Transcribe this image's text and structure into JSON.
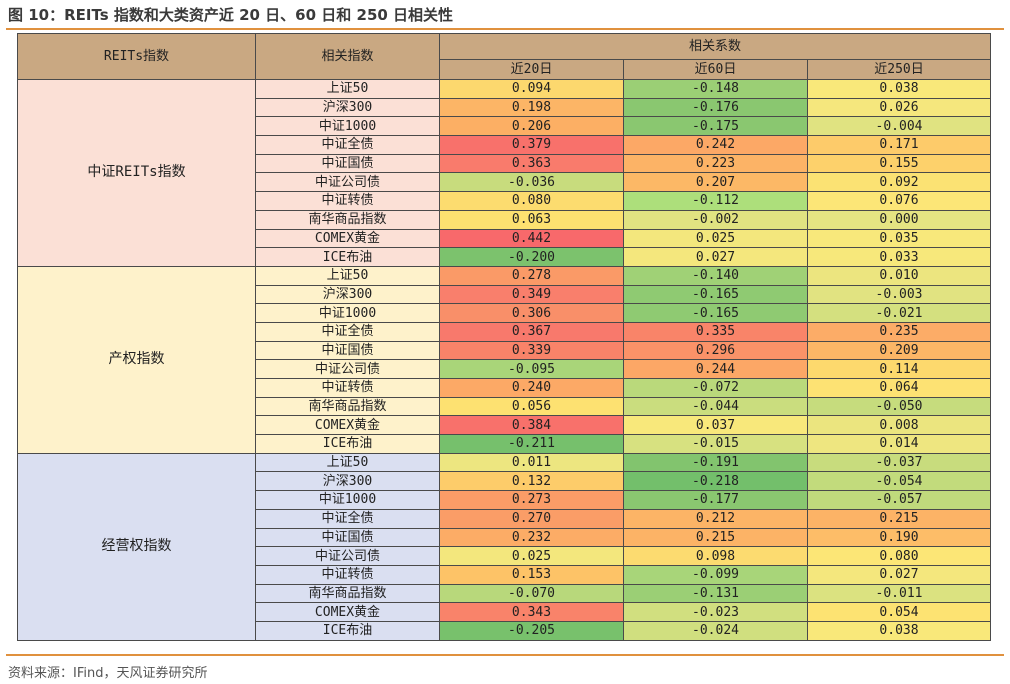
{
  "title": "图 10：REITs 指数和大类资产近 20 日、60 日和 250 日相关性",
  "source": "资料来源：IFind，天风证券研究所",
  "header": {
    "reits_index": "REITs指数",
    "related_index": "相关指数",
    "corr_coef": "相关系数",
    "periods": [
      "近20日",
      "近60日",
      "近250日"
    ]
  },
  "colors": {
    "header_bg": "#c9a882",
    "group_bgs": [
      "#fbe0d6",
      "#fef2cb",
      "#dadff1"
    ],
    "name_bgs": [
      "#fbe0d6",
      "#fef2cb",
      "#dadff1"
    ],
    "accent_rule": "#e0913e"
  },
  "groups": [
    {
      "name": "中证REITs指数",
      "rows": [
        {
          "index": "上证50",
          "values": [
            "0.094",
            "-0.148",
            "0.038"
          ],
          "colors": [
            "#fcd86e",
            "#9bcf75",
            "#f9e87a"
          ]
        },
        {
          "index": "沪深300",
          "values": [
            "0.198",
            "-0.176",
            "0.026"
          ],
          "colors": [
            "#fcb566",
            "#8ac770",
            "#f5e77d"
          ]
        },
        {
          "index": "中证1000",
          "values": [
            "0.206",
            "-0.175",
            "-0.004"
          ],
          "colors": [
            "#fcaf64",
            "#8ac770",
            "#e0e381"
          ]
        },
        {
          "index": "中证全债",
          "values": [
            "0.379",
            "0.242",
            "0.171"
          ],
          "colors": [
            "#f8716b",
            "#fca866",
            "#fdcb6a"
          ]
        },
        {
          "index": "中证国债",
          "values": [
            "0.363",
            "0.223",
            "0.155"
          ],
          "colors": [
            "#f97b6c",
            "#fcb366",
            "#fdd16b"
          ]
        },
        {
          "index": "中证公司债",
          "values": [
            "-0.036",
            "0.207",
            "0.092"
          ],
          "colors": [
            "#c8dc7d",
            "#fcb866",
            "#fbe273"
          ]
        },
        {
          "index": "中证转债",
          "values": [
            "0.080",
            "-0.112",
            "0.076"
          ],
          "colors": [
            "#fcdc6f",
            "#addf7b",
            "#fce677"
          ]
        },
        {
          "index": "南华商品指数",
          "values": [
            "0.063",
            "-0.002",
            "0.000"
          ],
          "colors": [
            "#fde170",
            "#e1e381",
            "#e5e482"
          ]
        },
        {
          "index": "COMEX黄金",
          "values": [
            "0.442",
            "0.025",
            "0.035"
          ],
          "colors": [
            "#f8696b",
            "#f3e77d",
            "#f8e87b"
          ]
        },
        {
          "index": "ICE布油",
          "values": [
            "-0.200",
            "0.027",
            "0.033"
          ],
          "colors": [
            "#7cc26d",
            "#f4e77d",
            "#f7e87b"
          ]
        }
      ]
    },
    {
      "name": "产权指数",
      "rows": [
        {
          "index": "上证50",
          "values": [
            "0.278",
            "-0.140",
            "0.010"
          ],
          "colors": [
            "#fa9a67",
            "#a0d176",
            "#ece57f"
          ]
        },
        {
          "index": "沪深300",
          "values": [
            "0.349",
            "-0.165",
            "-0.003"
          ],
          "colors": [
            "#f97f6c",
            "#8fca72",
            "#e1e381"
          ]
        },
        {
          "index": "中证1000",
          "values": [
            "0.306",
            "-0.165",
            "-0.021"
          ],
          "colors": [
            "#f98f69",
            "#8fca72",
            "#d4e07f"
          ]
        },
        {
          "index": "中证全债",
          "values": [
            "0.367",
            "0.335",
            "0.235"
          ],
          "colors": [
            "#f8796c",
            "#f98469",
            "#fcac67"
          ]
        },
        {
          "index": "中证国债",
          "values": [
            "0.339",
            "0.296",
            "0.209"
          ],
          "colors": [
            "#f98369",
            "#fa9268",
            "#fcb666"
          ]
        },
        {
          "index": "中证公司债",
          "values": [
            "-0.095",
            "0.244",
            "0.114"
          ],
          "colors": [
            "#a9d579",
            "#fca766",
            "#fdd96d"
          ]
        },
        {
          "index": "中证转债",
          "values": [
            "0.240",
            "-0.072",
            "0.064"
          ],
          "colors": [
            "#fca966",
            "#bad97b",
            "#fde273"
          ]
        },
        {
          "index": "南华商品指数",
          "values": [
            "0.056",
            "-0.044",
            "-0.050"
          ],
          "colors": [
            "#fde171",
            "#cadd7e",
            "#c6dc7d"
          ]
        },
        {
          "index": "COMEX黄金",
          "values": [
            "0.384",
            "0.037",
            "0.008"
          ],
          "colors": [
            "#f8716b",
            "#f8e87b",
            "#ebe57f"
          ]
        },
        {
          "index": "ICE布油",
          "values": [
            "-0.211",
            "-0.015",
            "0.014"
          ],
          "colors": [
            "#76c06c",
            "#d7e180",
            "#eee680"
          ]
        }
      ]
    },
    {
      "name": "经营权指数",
      "rows": [
        {
          "index": "上证50",
          "values": [
            "0.011",
            "-0.191",
            "-0.037"
          ],
          "colors": [
            "#ede680",
            "#82c46e",
            "#c8dc7d"
          ]
        },
        {
          "index": "沪深300",
          "values": [
            "0.132",
            "-0.218",
            "-0.054"
          ],
          "colors": [
            "#fdcc6a",
            "#73bf6b",
            "#c2db7c"
          ]
        },
        {
          "index": "中证1000",
          "values": [
            "0.273",
            "-0.177",
            "-0.057"
          ],
          "colors": [
            "#fa9c67",
            "#8ac770",
            "#c0da7c"
          ]
        },
        {
          "index": "中证全债",
          "values": [
            "0.270",
            "0.212",
            "0.215"
          ],
          "colors": [
            "#fa9d67",
            "#fcb466",
            "#fcb366"
          ]
        },
        {
          "index": "中证国债",
          "values": [
            "0.232",
            "0.215",
            "0.190"
          ],
          "colors": [
            "#fcac66",
            "#fcb366",
            "#fdbd68"
          ]
        },
        {
          "index": "中证公司债",
          "values": [
            "0.025",
            "0.098",
            "0.080"
          ],
          "colors": [
            "#f3e77d",
            "#fcdb70",
            "#fce676"
          ]
        },
        {
          "index": "中证转债",
          "values": [
            "0.153",
            "-0.099",
            "0.027"
          ],
          "colors": [
            "#fdc367",
            "#a8d579",
            "#f4e77d"
          ]
        },
        {
          "index": "南华商品指数",
          "values": [
            "-0.070",
            "-0.131",
            "-0.011"
          ],
          "colors": [
            "#b8d87b",
            "#9bcf75",
            "#dbe280"
          ]
        },
        {
          "index": "COMEX黄金",
          "values": [
            "0.343",
            "-0.023",
            "0.054"
          ],
          "colors": [
            "#f9836a",
            "#d1df7f",
            "#fde372"
          ]
        },
        {
          "index": "ICE布油",
          "values": [
            "-0.205",
            "-0.024",
            "0.038"
          ],
          "colors": [
            "#78c16c",
            "#d0df7f",
            "#f9e87a"
          ]
        }
      ]
    }
  ]
}
